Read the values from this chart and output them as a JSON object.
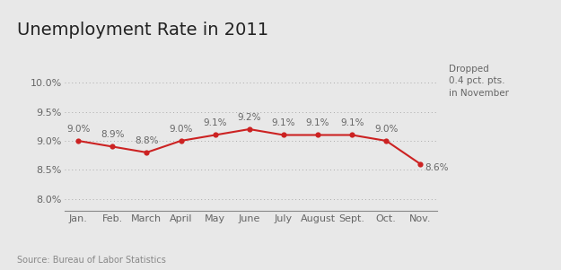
{
  "title": "Unemployment Rate in 2011",
  "months": [
    "Jan.",
    "Feb.",
    "March",
    "April",
    "May",
    "June",
    "July",
    "August",
    "Sept.",
    "Oct.",
    "Nov."
  ],
  "values": [
    9.0,
    8.9,
    8.8,
    9.0,
    9.1,
    9.2,
    9.1,
    9.1,
    9.1,
    9.0,
    8.6
  ],
  "labels": [
    "9.0%",
    "8.9%",
    "8.8%",
    "9.0%",
    "9.1%",
    "9.2%",
    "9.1%",
    "9.1%",
    "9.1%",
    "9.0%",
    "8.6%"
  ],
  "line_color": "#cc2222",
  "marker_color": "#cc2222",
  "background_color": "#e8e8e8",
  "plot_bg_color": "#e8e8e8",
  "yticks": [
    8.0,
    8.5,
    9.0,
    9.5,
    10.0
  ],
  "ytick_labels": [
    "8.0%",
    "8.5%",
    "9.0%",
    "9.5%",
    "10.0%"
  ],
  "ylim": [
    7.8,
    10.4
  ],
  "annotation_text": "Dropped\n0.4 pct. pts.\nin November",
  "source_text": "Source: Bureau of Labor Statistics",
  "title_fontsize": 14,
  "tick_fontsize": 8,
  "label_fontsize": 7.5,
  "annotation_fontsize": 7.5,
  "source_fontsize": 7
}
